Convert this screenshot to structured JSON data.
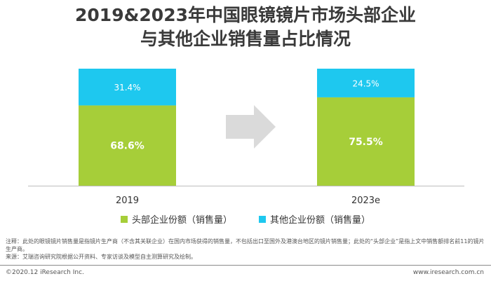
{
  "title_line1": "2019&2023年中国眼镜镜片市场头部企业",
  "title_line2": "与其他企业销售量占比情况",
  "chart_data": {
    "type": "bar",
    "stacked": true,
    "categories": [
      "2019",
      "2023e"
    ],
    "series": [
      {
        "name": "头部企业份额（销售量）",
        "values": [
          68.6,
          75.5
        ],
        "labels": [
          "68.6%",
          "75.5%"
        ],
        "color": "#a6ce39"
      },
      {
        "name": "其他企业份额（销售量）",
        "values": [
          31.4,
          24.5
        ],
        "labels": [
          "31.4%",
          "24.5%"
        ],
        "color": "#1ec8ef"
      }
    ],
    "ylim": [
      0,
      100
    ],
    "legend": "bottom",
    "grid": false
  },
  "note_line1": "注释：此处的眼镜镜片销售量是指镜片生产商（不含其关联企业）在国内市场获得的销售量，不包括出口至国外及港澳台地区的镜片销售量；此处的“头部企业”是指上文中销售额排名前11的镜片生产商。",
  "note_line2": "来源：艾瑞咨询研究院根据公开资料、专家访谈及模型自主测算研究及绘制。",
  "footer_left": "©2020.12 iResearch Inc.",
  "footer_right": "www.iresearch.com.cn"
}
